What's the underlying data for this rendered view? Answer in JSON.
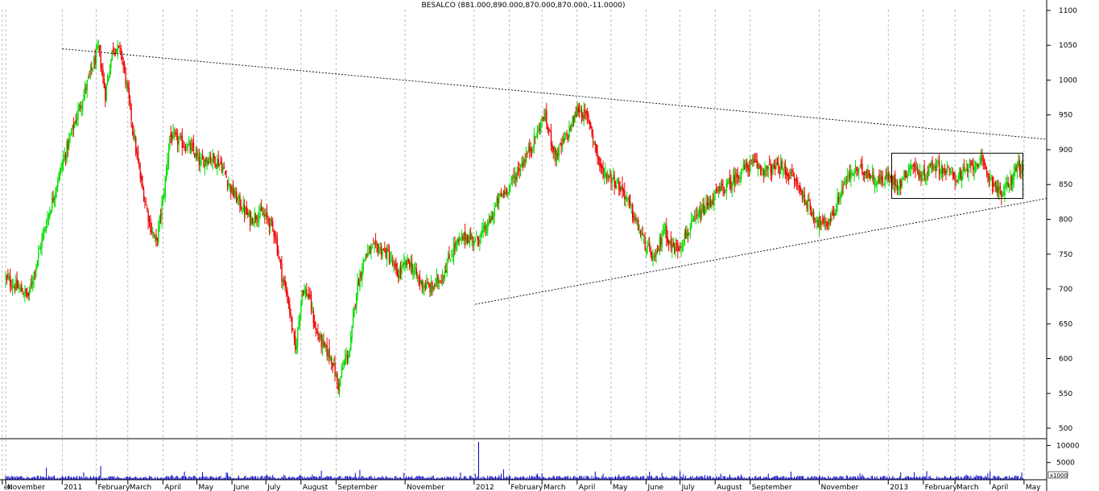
{
  "chart_data": {
    "type": "candlestick",
    "title": "BESALCO (881.000,890.000,870.000,870.000,-11.0000)",
    "price_axis": {
      "ylim": [
        485,
        1115
      ],
      "ticks": [
        "1100",
        "1050",
        "1000",
        "950",
        "900",
        "850",
        "800",
        "750",
        "700",
        "650",
        "600",
        "550",
        "500"
      ]
    },
    "volume_axis": {
      "ylim": [
        0,
        11500
      ],
      "ticks": [
        "10000",
        "5000"
      ],
      "multiplier_label": "x1000"
    },
    "x_axis": {
      "labels": [
        {
          "label": "er",
          "day": -3
        },
        {
          "label": "November",
          "day": 0
        },
        {
          "label": "2011",
          "day": 50
        },
        {
          "label": "February",
          "day": 80
        },
        {
          "label": "March",
          "day": 108
        },
        {
          "label": "April",
          "day": 139
        },
        {
          "label": "May",
          "day": 169
        },
        {
          "label": "June",
          "day": 200
        },
        {
          "label": "July",
          "day": 230
        },
        {
          "label": "August",
          "day": 261
        },
        {
          "label": "September",
          "day": 292
        },
        {
          "label": "November",
          "day": 353
        },
        {
          "label": "2012",
          "day": 414
        },
        {
          "label": "February",
          "day": 445
        },
        {
          "label": "March",
          "day": 474
        },
        {
          "label": "April",
          "day": 505
        },
        {
          "label": "May",
          "day": 535
        },
        {
          "label": "June",
          "day": 566
        },
        {
          "label": "July",
          "day": 596
        },
        {
          "label": "August",
          "day": 627
        },
        {
          "label": "September",
          "day": 658
        },
        {
          "label": "November",
          "day": 719
        },
        {
          "label": "2013",
          "day": 780
        },
        {
          "label": "February",
          "day": 811
        },
        {
          "label": "March",
          "day": 839
        },
        {
          "label": "April",
          "day": 870
        },
        {
          "label": "May",
          "day": 900
        }
      ],
      "range_days": [
        -5,
        920
      ]
    },
    "anchors": [
      [
        0,
        715
      ],
      [
        20,
        690
      ],
      [
        35,
        790
      ],
      [
        50,
        880
      ],
      [
        65,
        960
      ],
      [
        75,
        1010
      ],
      [
        82,
        1045
      ],
      [
        88,
        980
      ],
      [
        95,
        1050
      ],
      [
        102,
        1040
      ],
      [
        108,
        980
      ],
      [
        115,
        900
      ],
      [
        120,
        850
      ],
      [
        128,
        790
      ],
      [
        133,
        765
      ],
      [
        140,
        840
      ],
      [
        145,
        920
      ],
      [
        155,
        910
      ],
      [
        165,
        900
      ],
      [
        172,
        880
      ],
      [
        180,
        890
      ],
      [
        190,
        880
      ],
      [
        200,
        840
      ],
      [
        208,
        820
      ],
      [
        216,
        800
      ],
      [
        224,
        810
      ],
      [
        232,
        800
      ],
      [
        238,
        780
      ],
      [
        244,
        720
      ],
      [
        250,
        680
      ],
      [
        256,
        610
      ],
      [
        262,
        700
      ],
      [
        268,
        690
      ],
      [
        274,
        640
      ],
      [
        280,
        620
      ],
      [
        288,
        600
      ],
      [
        294,
        560
      ],
      [
        300,
        600
      ],
      [
        304,
        610
      ],
      [
        310,
        700
      ],
      [
        318,
        750
      ],
      [
        328,
        760
      ],
      [
        338,
        750
      ],
      [
        346,
        720
      ],
      [
        356,
        740
      ],
      [
        366,
        710
      ],
      [
        376,
        700
      ],
      [
        386,
        720
      ],
      [
        396,
        760
      ],
      [
        406,
        775
      ],
      [
        416,
        770
      ],
      [
        426,
        790
      ],
      [
        436,
        830
      ],
      [
        446,
        850
      ],
      [
        456,
        880
      ],
      [
        466,
        910
      ],
      [
        476,
        950
      ],
      [
        486,
        890
      ],
      [
        496,
        920
      ],
      [
        506,
        960
      ],
      [
        516,
        940
      ],
      [
        526,
        870
      ],
      [
        536,
        860
      ],
      [
        546,
        840
      ],
      [
        556,
        800
      ],
      [
        566,
        760
      ],
      [
        574,
        740
      ],
      [
        582,
        790
      ],
      [
        588,
        760
      ],
      [
        594,
        760
      ],
      [
        602,
        780
      ],
      [
        610,
        800
      ],
      [
        620,
        820
      ],
      [
        630,
        840
      ],
      [
        640,
        850
      ],
      [
        650,
        870
      ],
      [
        660,
        880
      ],
      [
        672,
        870
      ],
      [
        684,
        875
      ],
      [
        696,
        860
      ],
      [
        706,
        830
      ],
      [
        716,
        800
      ],
      [
        724,
        790
      ],
      [
        732,
        810
      ],
      [
        740,
        850
      ],
      [
        750,
        870
      ],
      [
        760,
        870
      ],
      [
        770,
        855
      ],
      [
        780,
        860
      ],
      [
        790,
        850
      ],
      [
        800,
        880
      ],
      [
        810,
        860
      ],
      [
        820,
        880
      ],
      [
        830,
        870
      ],
      [
        840,
        860
      ],
      [
        850,
        870
      ],
      [
        860,
        885
      ],
      [
        870,
        860
      ],
      [
        880,
        835
      ],
      [
        888,
        855
      ],
      [
        895,
        880
      ],
      [
        899,
        870
      ]
    ],
    "trendlines": [
      {
        "from": [
          50,
          1045
        ],
        "to": [
          920,
          915
        ]
      },
      {
        "from": [
          415,
          678
        ],
        "to": [
          920,
          830
        ]
      }
    ],
    "range_box": {
      "x": [
        783,
        899
      ],
      "y": [
        830,
        895
      ]
    },
    "volume_spikes": [
      [
        418,
        11000
      ],
      [
        36,
        3500
      ],
      [
        84,
        4000
      ],
      [
        440,
        3000
      ],
      [
        596,
        2500
      ],
      [
        640,
        1500
      ]
    ]
  },
  "colors": {
    "up": "#00dd00",
    "down": "#ee0000",
    "volume": "#0000cc",
    "grid": "#a0a0a0",
    "axis": "#000000",
    "box": "#000000"
  }
}
